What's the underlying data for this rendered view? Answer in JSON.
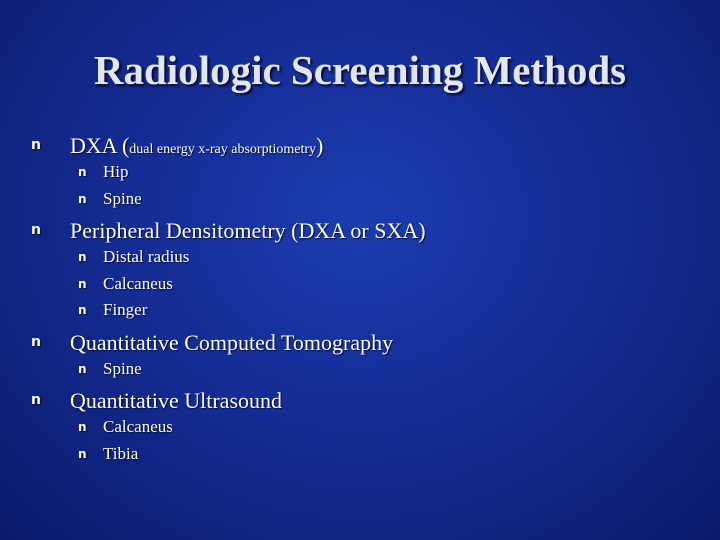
{
  "title": "Radiologic Screening Methods",
  "bullet": "n",
  "items": [
    {
      "parts": [
        "DXA (",
        "dual energy x-ray absorptiometry",
        ")"
      ],
      "sub": [
        "Hip",
        "Spine"
      ]
    },
    {
      "parts": [
        "Peripheral Densitometry (DXA or SXA)"
      ],
      "sub": [
        "Distal radius",
        "Calcaneus",
        "Finger"
      ]
    },
    {
      "parts": [
        "Quantitative Computed Tomography"
      ],
      "sub": [
        "Spine"
      ]
    },
    {
      "parts": [
        "Quantitative Ultrasound"
      ],
      "sub": [
        "Calcaneus",
        "Tibia"
      ]
    }
  ]
}
